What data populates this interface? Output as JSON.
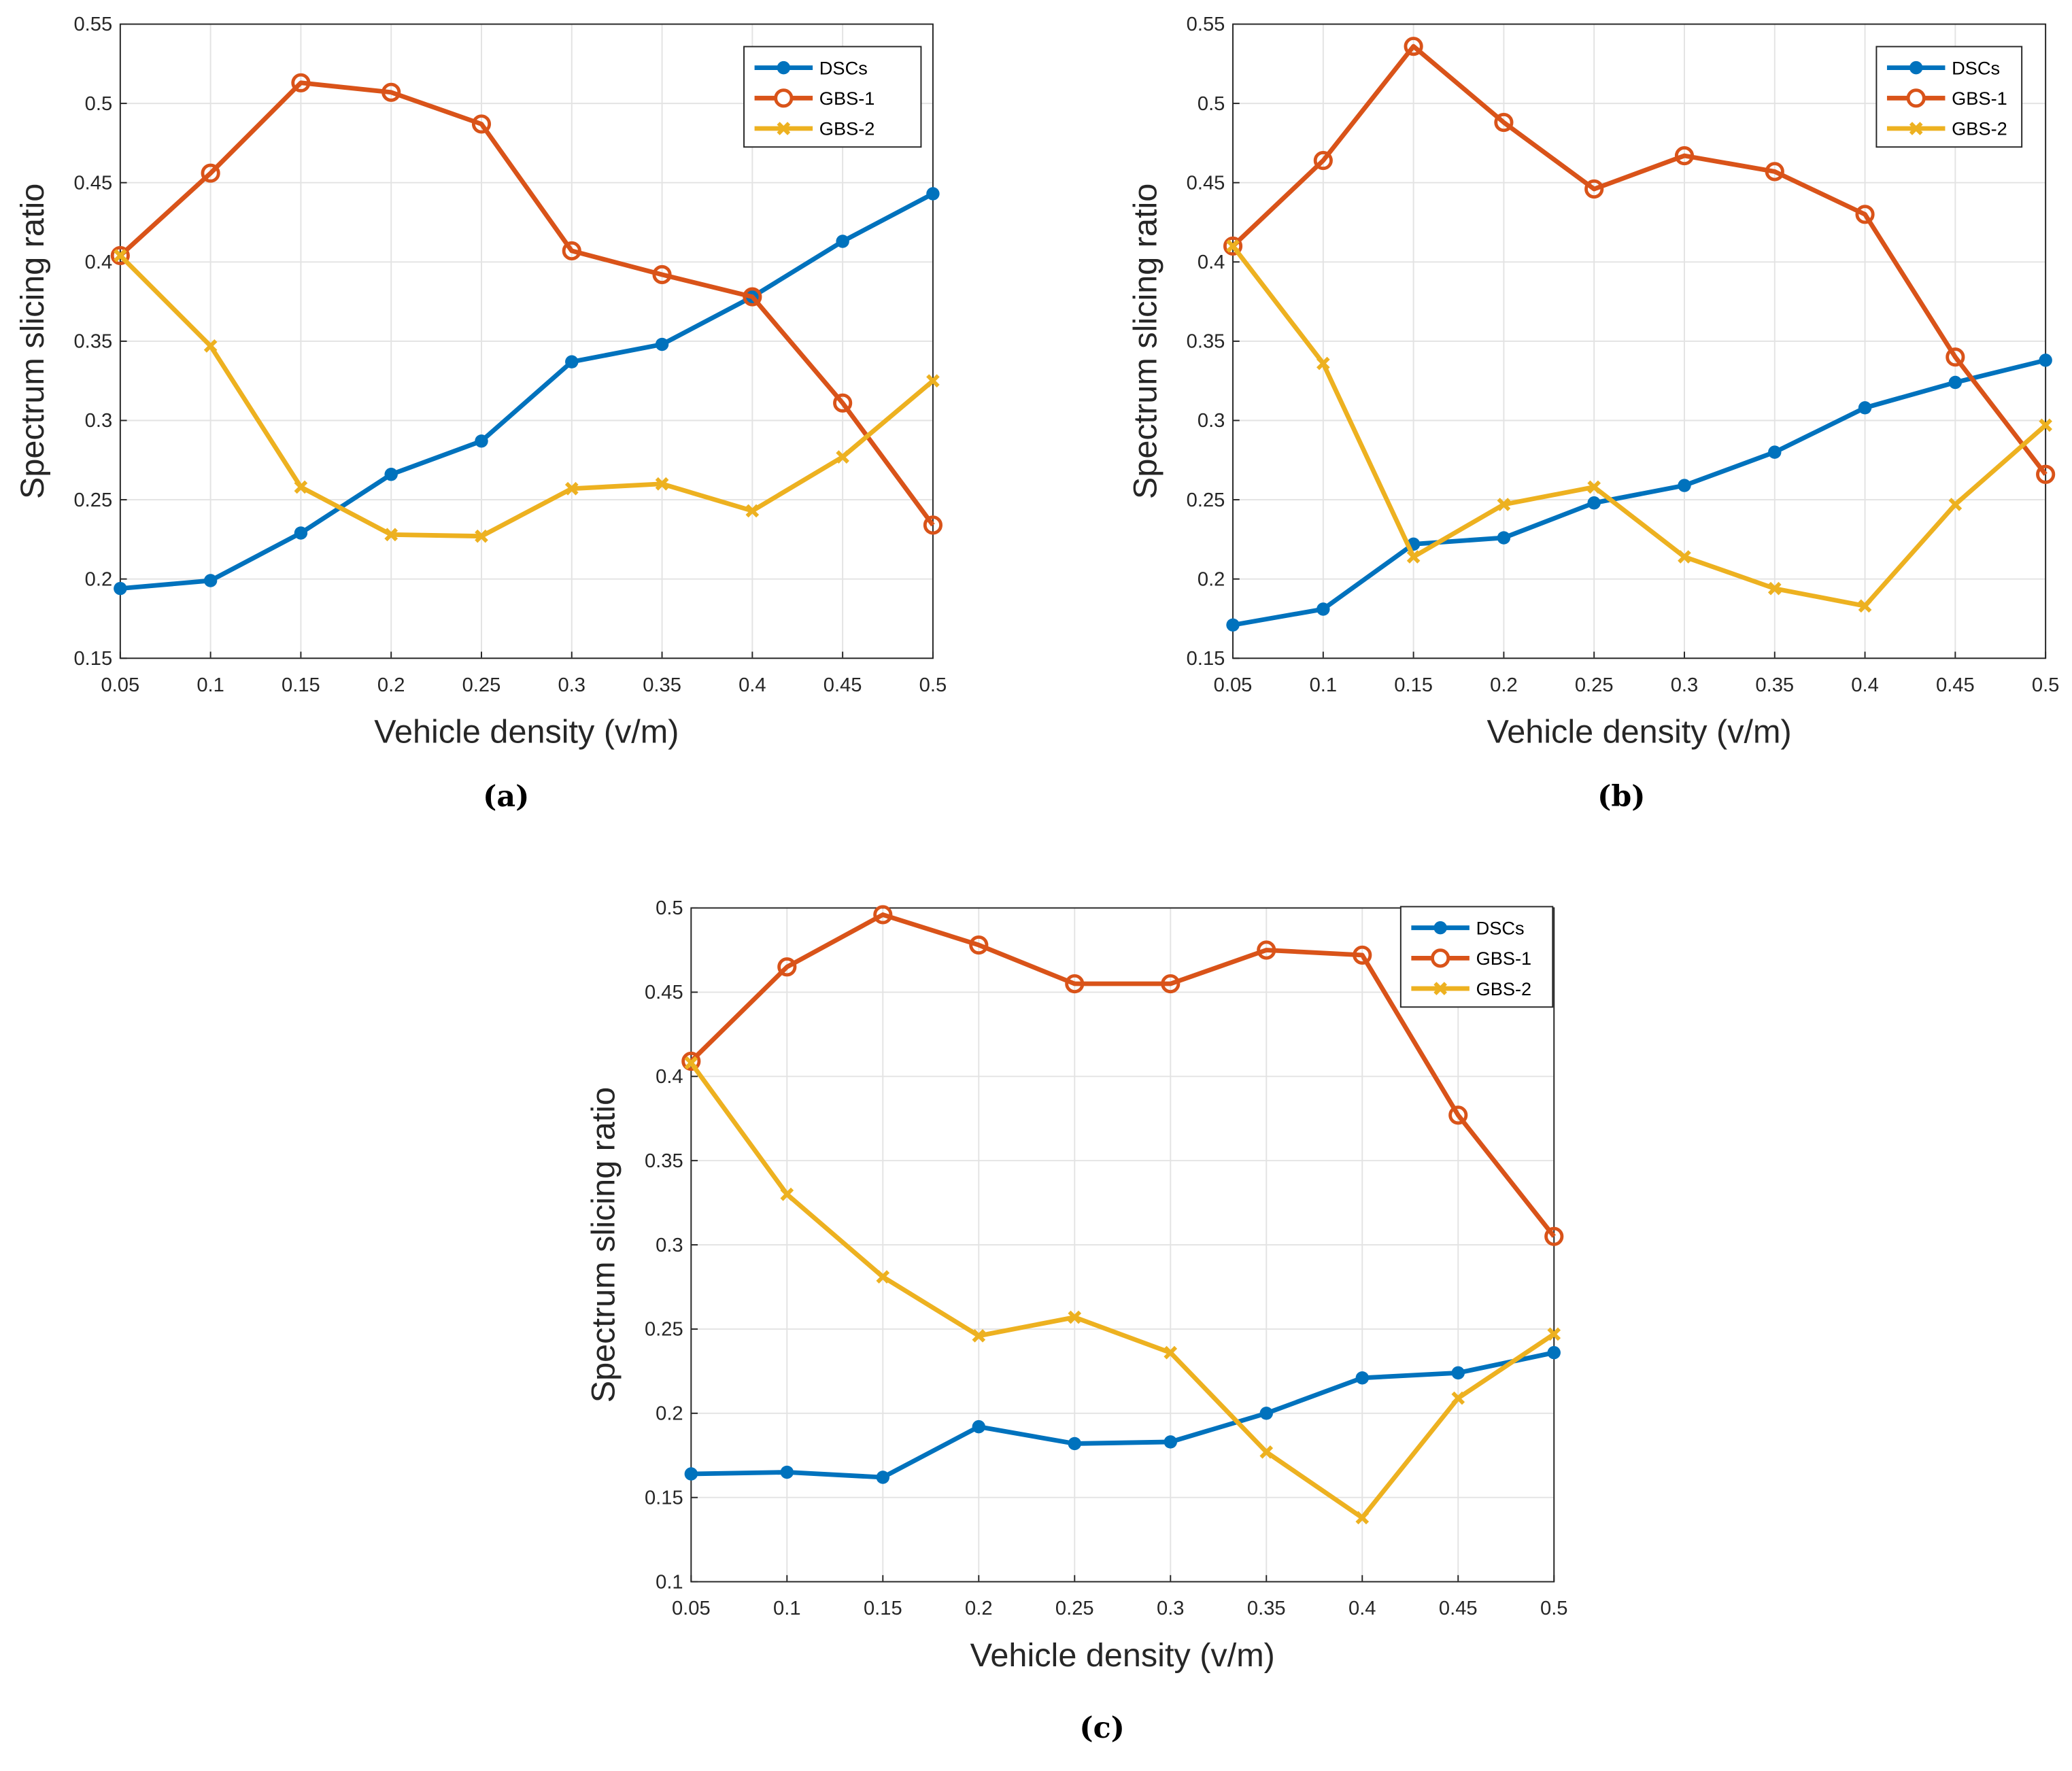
{
  "colors": {
    "DSCs": "#0072BD",
    "GBS-1": "#D95319",
    "GBS-2": "#EDB120",
    "grid": "#e3e3e3",
    "axis": "#262626"
  },
  "chart_data": [
    {
      "type": "line",
      "caption": "(a)",
      "xlabel": "Vehicle density (v/m)",
      "ylabel": "Spectrum slicing ratio",
      "x": [
        0.05,
        0.1,
        0.15,
        0.2,
        0.25,
        0.3,
        0.35,
        0.4,
        0.45,
        0.5
      ],
      "xticks": [
        "0.05",
        "0.1",
        "0.15",
        "0.2",
        "0.25",
        "0.3",
        "0.35",
        "0.4",
        "0.45",
        "0.5"
      ],
      "xlim": [
        0.05,
        0.5
      ],
      "ylim": [
        0.15,
        0.55
      ],
      "yticks": [
        "0.15",
        "0.2",
        "0.25",
        "0.3",
        "0.35",
        "0.4",
        "0.45",
        "0.5",
        "0.55"
      ],
      "grid": true,
      "legend": "top-right",
      "series": [
        {
          "name": "DSCs",
          "marker": "dot",
          "values": [
            0.194,
            0.199,
            0.229,
            0.266,
            0.287,
            0.337,
            0.348,
            0.378,
            0.413,
            0.443
          ]
        },
        {
          "name": "GBS-1",
          "marker": "circle",
          "values": [
            0.404,
            0.456,
            0.513,
            0.507,
            0.487,
            0.407,
            0.392,
            0.378,
            0.311,
            0.234
          ]
        },
        {
          "name": "GBS-2",
          "marker": "x",
          "values": [
            0.404,
            0.347,
            0.258,
            0.228,
            0.227,
            0.257,
            0.26,
            0.243,
            0.277,
            0.325
          ]
        }
      ]
    },
    {
      "type": "line",
      "caption": "(b)",
      "xlabel": "Vehicle density (v/m)",
      "ylabel": "Spectrum slicing ratio",
      "x": [
        0.05,
        0.1,
        0.15,
        0.2,
        0.25,
        0.3,
        0.35,
        0.4,
        0.45,
        0.5
      ],
      "xticks": [
        "0.05",
        "0.1",
        "0.15",
        "0.2",
        "0.25",
        "0.3",
        "0.35",
        "0.4",
        "0.45",
        "0.5"
      ],
      "xlim": [
        0.05,
        0.5
      ],
      "ylim": [
        0.15,
        0.55
      ],
      "yticks": [
        "0.15",
        "0.2",
        "0.25",
        "0.3",
        "0.35",
        "0.4",
        "0.45",
        "0.5",
        "0.55"
      ],
      "grid": true,
      "legend": "top-right",
      "series": [
        {
          "name": "DSCs",
          "marker": "dot",
          "values": [
            0.171,
            0.181,
            0.222,
            0.226,
            0.248,
            0.259,
            0.28,
            0.308,
            0.324,
            0.338
          ]
        },
        {
          "name": "GBS-1",
          "marker": "circle",
          "values": [
            0.41,
            0.464,
            0.536,
            0.488,
            0.446,
            0.467,
            0.457,
            0.43,
            0.34,
            0.266
          ]
        },
        {
          "name": "GBS-2",
          "marker": "x",
          "values": [
            0.41,
            0.336,
            0.214,
            0.247,
            0.258,
            0.214,
            0.194,
            0.183,
            0.247,
            0.297
          ]
        }
      ]
    },
    {
      "type": "line",
      "caption": "(c)",
      "xlabel": "Vehicle density (v/m)",
      "ylabel": "Spectrum slicing ratio",
      "x": [
        0.05,
        0.1,
        0.15,
        0.2,
        0.25,
        0.3,
        0.35,
        0.4,
        0.45,
        0.5
      ],
      "xticks": [
        "0.05",
        "0.1",
        "0.15",
        "0.2",
        "0.25",
        "0.3",
        "0.35",
        "0.4",
        "0.45",
        "0.5"
      ],
      "xlim": [
        0.05,
        0.5
      ],
      "ylim": [
        0.1,
        0.5
      ],
      "yticks": [
        "0.1",
        "0.15",
        "0.2",
        "0.25",
        "0.3",
        "0.35",
        "0.4",
        "0.45",
        "0.5"
      ],
      "grid": true,
      "legend": "top-right",
      "series": [
        {
          "name": "DSCs",
          "marker": "dot",
          "values": [
            0.164,
            0.165,
            0.162,
            0.192,
            0.182,
            0.183,
            0.2,
            0.221,
            0.224,
            0.236
          ]
        },
        {
          "name": "GBS-1",
          "marker": "circle",
          "values": [
            0.409,
            0.465,
            0.496,
            0.478,
            0.455,
            0.455,
            0.475,
            0.472,
            0.377,
            0.305
          ]
        },
        {
          "name": "GBS-2",
          "marker": "x",
          "values": [
            0.408,
            0.33,
            0.281,
            0.246,
            0.257,
            0.236,
            0.177,
            0.138,
            0.209,
            0.247
          ]
        }
      ]
    }
  ]
}
